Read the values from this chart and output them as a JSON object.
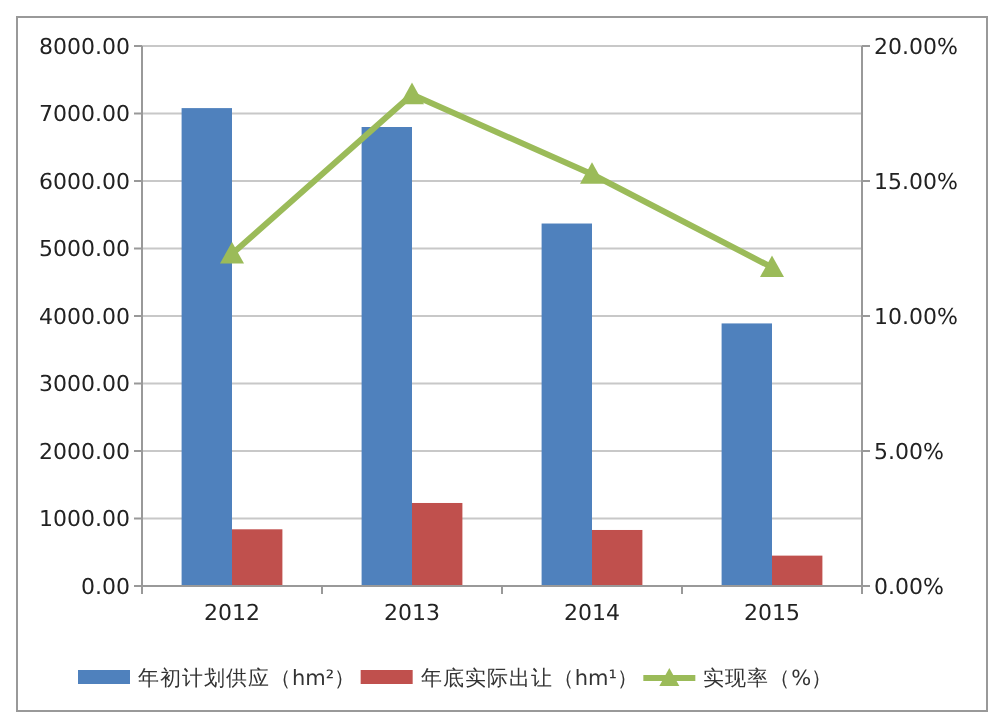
{
  "chart_data": {
    "type": "bar",
    "categories": [
      "2012",
      "2013",
      "2014",
      "2015"
    ],
    "series": [
      {
        "name": "年初计划供应（hm²）",
        "color": "#4f81bd",
        "values": [
          7080,
          6800,
          5370,
          3890
        ]
      },
      {
        "name": "年底实际出让（hm¹）",
        "color": "#c0504d",
        "values": [
          840,
          1230,
          830,
          450
        ]
      },
      {
        "name": "实现率（%）",
        "type": "line",
        "axis": "y2",
        "color": "#9bbb59",
        "marker": "triangle",
        "values": [
          12.3,
          18.2,
          15.25,
          11.8
        ]
      }
    ],
    "ylim": [
      0,
      8000
    ],
    "yticks": [
      {
        "value": 0,
        "label": "0.00"
      },
      {
        "value": 1000,
        "label": "1000.00"
      },
      {
        "value": 2000,
        "label": "2000.00"
      },
      {
        "value": 3000,
        "label": "3000.00"
      },
      {
        "value": 4000,
        "label": "4000.00"
      },
      {
        "value": 5000,
        "label": "5000.00"
      },
      {
        "value": 6000,
        "label": "6000.00"
      },
      {
        "value": 7000,
        "label": "7000.00"
      },
      {
        "value": 8000,
        "label": "8000.00"
      }
    ],
    "y2lim": [
      0,
      20
    ],
    "y2ticks": [
      {
        "value": 0,
        "label": "0.00%"
      },
      {
        "value": 5,
        "label": "5.00%"
      },
      {
        "value": 10,
        "label": "10.00%"
      },
      {
        "value": 15,
        "label": "15.00%"
      },
      {
        "value": 20,
        "label": "20.00%"
      }
    ],
    "grid": "y",
    "legend": "bottom"
  }
}
